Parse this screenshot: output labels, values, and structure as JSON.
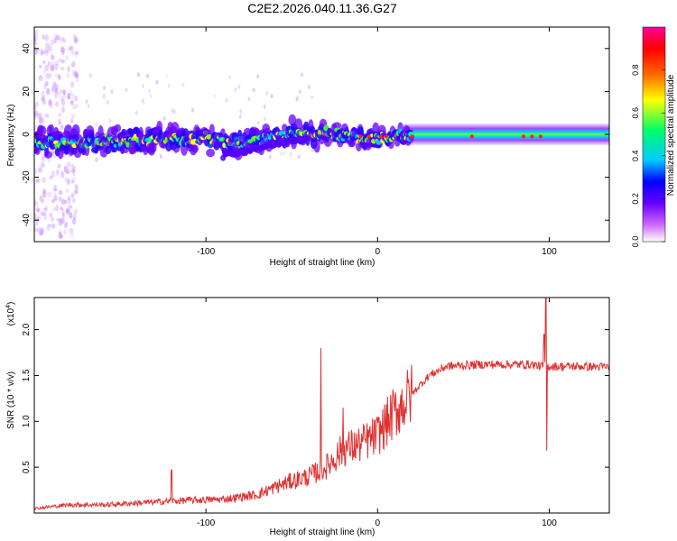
{
  "title": "C2E2.2026.040.11.36.G27",
  "chart_data": [
    {
      "type": "heatmap",
      "xlabel": "Height of straight line (km)",
      "ylabel": "Frequency (Hz)",
      "xlim": [
        -200,
        135
      ],
      "ylim": [
        -50,
        50
      ],
      "x_ticks": [
        -100,
        0,
        100
      ],
      "y_ticks": [
        -40,
        -20,
        0,
        20,
        40
      ],
      "grid": false,
      "colorbar": {
        "label": "Normalized spectral amplitude",
        "range": [
          0,
          1
        ],
        "ticks": [
          0.0,
          0.2,
          0.4,
          0.6,
          0.8
        ],
        "tick_labels": [
          "0.0",
          "0.2",
          "0.4",
          "0.6",
          "0.8"
        ],
        "colors": [
          "#ffffff",
          "#cc66ff",
          "#6600ff",
          "#0000ff",
          "#00ccff",
          "#00ff66",
          "#ffff00",
          "#ff6600",
          "#ff0000",
          "#ff0099"
        ]
      },
      "ridge": {
        "description_points": [
          {
            "x": -200,
            "center_hz": -4,
            "amplitude": 0.35
          },
          {
            "x": -150,
            "center_hz": -3,
            "amplitude": 0.35
          },
          {
            "x": -100,
            "center_hz": -2,
            "amplitude": 0.4
          },
          {
            "x": -80,
            "center_hz": -4,
            "amplitude": 0.4
          },
          {
            "x": -50,
            "center_hz": 0,
            "amplitude": 0.45
          },
          {
            "x": -25,
            "center_hz": 0,
            "amplitude": 0.55
          },
          {
            "x": 0,
            "center_hz": -2,
            "amplitude": 0.65
          },
          {
            "x": 20,
            "center_hz": 0,
            "amplitude": 0.6
          },
          {
            "x": 135,
            "center_hz": 0,
            "amplitude": 0.55
          }
        ]
      }
    },
    {
      "type": "line",
      "xlabel": "Height of straight line (km)",
      "ylabel": "SNR (10 * v/v)",
      "y_scale_label": "(x10",
      "y_scale_exponent": "4",
      "xlim": [
        -200,
        135
      ],
      "ylim": [
        0,
        23500
      ],
      "x_ticks": [
        -100,
        0,
        100
      ],
      "y_ticks": [
        5000,
        10000,
        15000,
        20000
      ],
      "y_tick_labels": [
        "0.5",
        "1.0",
        "1.5",
        "2.0"
      ],
      "grid": false,
      "series": [
        {
          "color": "#e03030",
          "envelope": {
            "x": [
              -200,
              -180,
              -160,
              -130,
              -110,
              -90,
              -70,
              -60,
              -50,
              -40,
              -30,
              -20,
              -10,
              0,
              10,
              20,
              30,
              40,
              60,
              80,
              90,
              95,
              98,
              100,
              110,
              120,
              135
            ],
            "y": [
              500,
              900,
              900,
              1200,
              1400,
              1500,
              2000,
              2800,
              3500,
              4000,
              5000,
              7000,
              7500,
              8500,
              11000,
              13000,
              15000,
              16000,
              16200,
              16200,
              16200,
              16000,
              16000,
              16000,
              16000,
              16000,
              15900
            ]
          },
          "spikes": [
            {
              "x": -120,
              "y": 4700
            },
            {
              "x": -33,
              "y": 18000
            },
            {
              "x": -20,
              "y": 11500
            },
            {
              "x": 97,
              "y": 19500
            },
            {
              "x": 98,
              "y": 23500
            },
            {
              "x": 98.5,
              "y": 6800
            }
          ]
        }
      ]
    }
  ]
}
